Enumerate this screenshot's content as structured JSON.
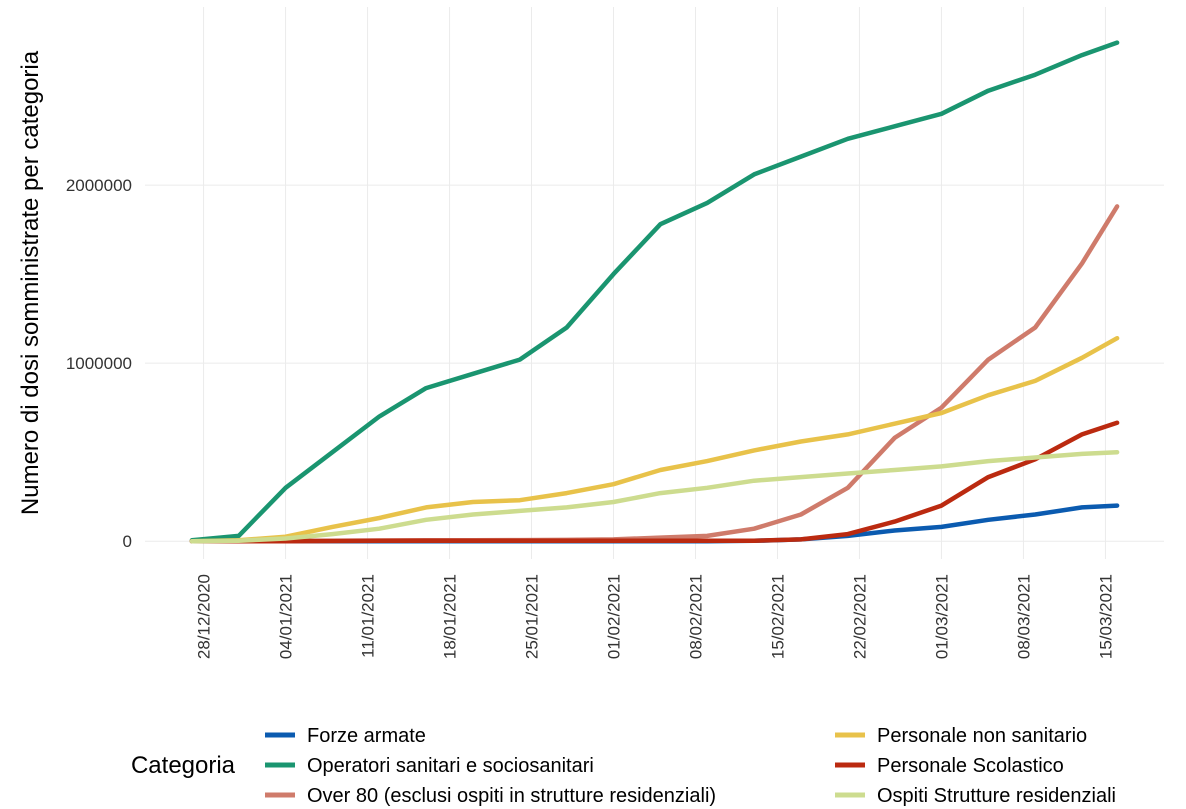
{
  "chart_data": {
    "type": "line",
    "y_label": "Numero di dosi somministrate per categoria",
    "legend_title": "Categoria",
    "legend_position": "bottom",
    "grid": true,
    "x": [
      "27/12/2020",
      "31/12/2020",
      "04/01/2021",
      "08/01/2021",
      "12/01/2021",
      "16/01/2021",
      "20/01/2021",
      "24/01/2021",
      "28/01/2021",
      "01/02/2021",
      "05/02/2021",
      "09/02/2021",
      "13/02/2021",
      "17/02/2021",
      "21/02/2021",
      "25/02/2021",
      "01/03/2021",
      "05/03/2021",
      "09/03/2021",
      "13/03/2021",
      "16/03/2021"
    ],
    "xlim": [
      "23/12/2020",
      "20/03/2021"
    ],
    "xticks": [
      "28/12/2020",
      "04/01/2021",
      "11/01/2021",
      "18/01/2021",
      "25/01/2021",
      "01/02/2021",
      "08/02/2021",
      "15/02/2021",
      "22/02/2021",
      "01/03/2021",
      "08/03/2021",
      "15/03/2021"
    ],
    "ylim": [
      -100000,
      3000000
    ],
    "yticks": [
      0,
      1000000,
      2000000
    ],
    "series": [
      {
        "name": "Forze armate",
        "color": "#0b5bb0",
        "values": [
          0,
          0,
          0,
          0,
          0,
          0,
          0,
          0,
          0,
          0,
          0,
          0,
          2000,
          10000,
          30000,
          60000,
          80000,
          120000,
          150000,
          190000,
          200000
        ]
      },
      {
        "name": "Operatori sanitari e sociosanitari",
        "color": "#1a9570",
        "values": [
          5000,
          30000,
          300000,
          500000,
          700000,
          860000,
          940000,
          1020000,
          1200000,
          1500000,
          1780000,
          1900000,
          2060000,
          2160000,
          2260000,
          2330000,
          2400000,
          2530000,
          2620000,
          2730000,
          2800000
        ]
      },
      {
        "name": "Over 80 (esclusi ospiti in strutture residenziali)",
        "color": "#cf7b6b",
        "values": [
          0,
          0,
          2000,
          3000,
          4000,
          5000,
          5000,
          6000,
          7000,
          10000,
          20000,
          30000,
          70000,
          150000,
          300000,
          580000,
          750000,
          1020000,
          1200000,
          1560000,
          1880000
        ]
      },
      {
        "name": "Personale non sanitario",
        "color": "#e8c24a",
        "values": [
          0,
          5000,
          25000,
          80000,
          130000,
          190000,
          220000,
          230000,
          270000,
          320000,
          400000,
          450000,
          510000,
          560000,
          600000,
          660000,
          720000,
          820000,
          900000,
          1030000,
          1140000
        ]
      },
      {
        "name": "Personale Scolastico",
        "color": "#bb2a10",
        "values": [
          0,
          0,
          0,
          1000,
          2000,
          3000,
          3000,
          3000,
          3000,
          3000,
          3000,
          3000,
          3000,
          10000,
          40000,
          110000,
          200000,
          360000,
          460000,
          600000,
          665000
        ]
      },
      {
        "name": "Ospiti Strutture residenziali",
        "color": "#cddc8f",
        "values": [
          0,
          3000,
          15000,
          40000,
          70000,
          120000,
          150000,
          170000,
          190000,
          220000,
          270000,
          300000,
          340000,
          360000,
          380000,
          400000,
          420000,
          450000,
          470000,
          490000,
          500000
        ]
      }
    ]
  }
}
